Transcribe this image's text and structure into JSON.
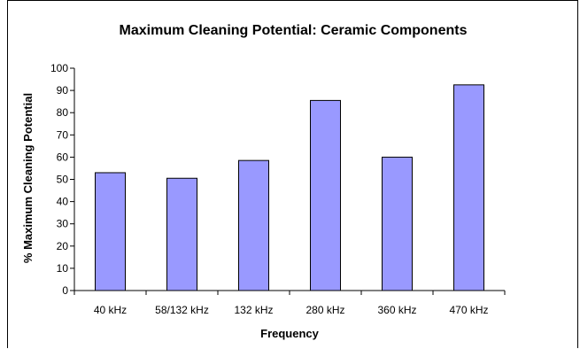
{
  "chart_data": {
    "type": "bar",
    "title": "Maximum Cleaning Potential: Ceramic Components",
    "xlabel": "Frequency",
    "ylabel": "% Maximum Cleaning Potential",
    "categories": [
      "40 kHz",
      "58/132 kHz",
      "132 kHz",
      "280 kHz",
      "360 kHz",
      "470 kHz"
    ],
    "values": [
      53,
      50.5,
      58.5,
      85.5,
      60,
      92.5
    ],
    "ylim": [
      0,
      100
    ],
    "yticks": [
      0,
      10,
      20,
      30,
      40,
      50,
      60,
      70,
      80,
      90,
      100
    ],
    "grid": false,
    "legend": "none",
    "colors": {
      "bar_fill": "#9999ff",
      "bar_stroke": "#000000",
      "axis": "#000000"
    }
  }
}
